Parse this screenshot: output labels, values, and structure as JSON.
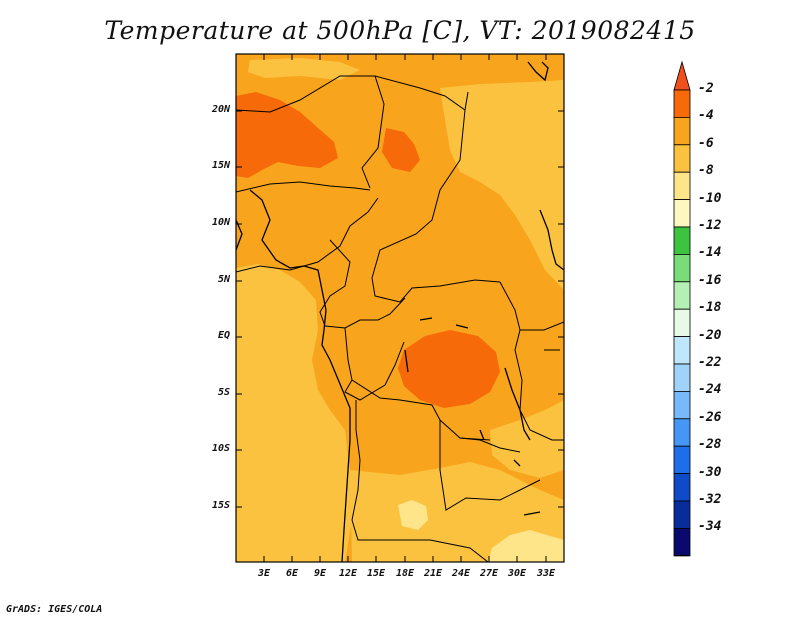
{
  "title": "Temperature at 500hPa [C], VT: 2019082415",
  "credit": "GrADS: IGES/COLA",
  "colors": {
    "very_light_orange": "#fee58a",
    "light_orange": "#fbc23f",
    "orange": "#f8a41c",
    "dark_orange": "#f76a0a",
    "boundary": "#000000"
  },
  "axes": {
    "y_ticks": [
      "20N",
      "15N",
      "10N",
      "5N",
      "EQ",
      "5S",
      "10S",
      "15S"
    ],
    "x_ticks": [
      "3E",
      "6E",
      "9E",
      "12E",
      "15E",
      "18E",
      "21E",
      "24E",
      "27E",
      "30E",
      "33E"
    ]
  },
  "colorbar": {
    "labels": [
      "-2",
      "-4",
      "-6",
      "-8",
      "-10",
      "-12",
      "-14",
      "-16",
      "-18",
      "-20",
      "-22",
      "-24",
      "-26",
      "-28",
      "-30",
      "-32",
      "-34"
    ],
    "colors": [
      "#f0501e",
      "#f76a0a",
      "#f8a41c",
      "#fbc23f",
      "#fee58a",
      "#fdf8c0",
      "#3cc340",
      "#78dc78",
      "#b4f0b4",
      "#e6fae6",
      "#bfe6fa",
      "#a0d2fa",
      "#78b9fa",
      "#4697f5",
      "#1e6eeb",
      "#0f4bc8",
      "#082d9b",
      "#0a0a6e",
      "#dcdcf5"
    ]
  }
}
